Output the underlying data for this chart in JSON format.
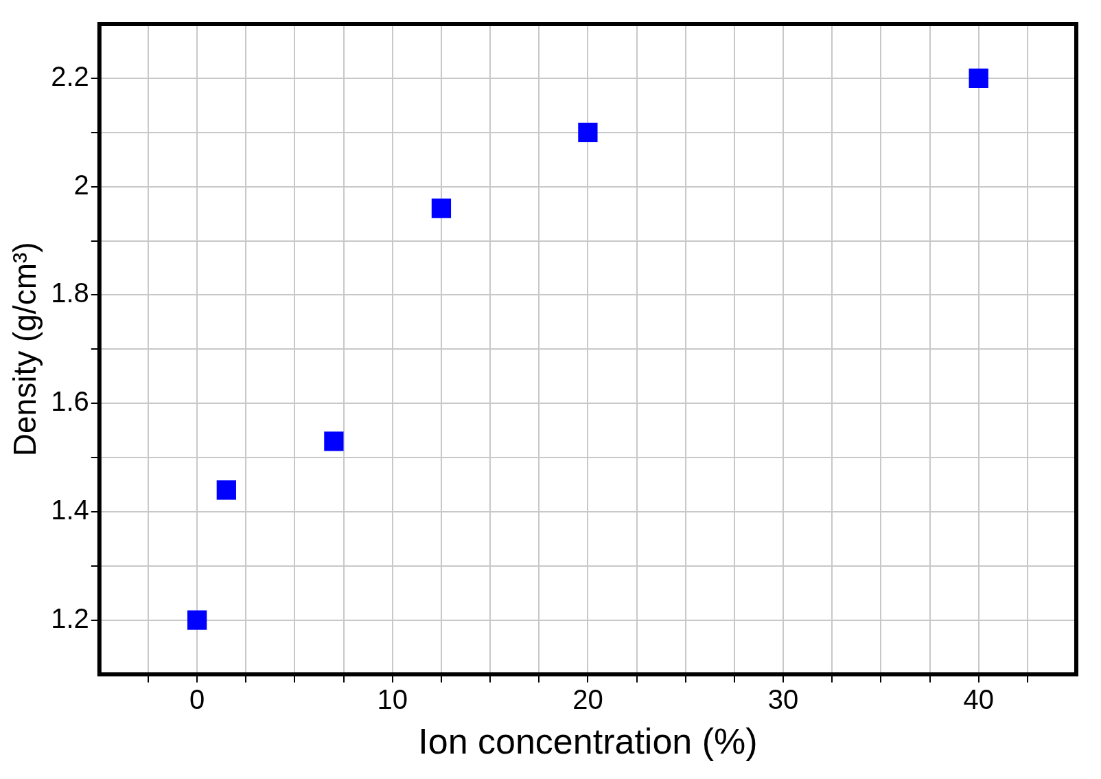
{
  "chart_data": {
    "type": "scatter",
    "xlabel": "Ion concentration (%)",
    "ylabel": "Density (g/cm³)",
    "x": [
      0,
      1.5,
      7,
      12.5,
      20,
      40
    ],
    "series": [
      {
        "color": "#0000ff",
        "values": [
          1.2,
          1.44,
          1.53,
          1.96,
          2.1,
          2.2
        ]
      }
    ],
    "marker": "square",
    "grid": true,
    "legend": false,
    "xlim": [
      -5,
      45
    ],
    "xticks": [
      {
        "value": -2.5,
        "label": null
      },
      0,
      {
        "value": 2.5,
        "label": null
      },
      {
        "value": 5,
        "label": null
      },
      {
        "value": 7.5,
        "label": null
      },
      10,
      {
        "value": 12.5,
        "label": null
      },
      {
        "value": 15,
        "label": null
      },
      {
        "value": 17.5,
        "label": null
      },
      20,
      {
        "value": 22.5,
        "label": null
      },
      {
        "value": 25,
        "label": null
      },
      {
        "value": 27.5,
        "label": null
      },
      30,
      {
        "value": 32.5,
        "label": null
      },
      {
        "value": 35,
        "label": null
      },
      {
        "value": 37.5,
        "label": null
      },
      40,
      {
        "value": 42.5,
        "label": null
      }
    ],
    "ylim": [
      1.1,
      2.3
    ],
    "yticks": [
      1.2,
      {
        "value": 1.3,
        "label": null
      },
      1.4,
      {
        "value": 1.5,
        "label": null
      },
      1.6,
      {
        "value": 1.7,
        "label": null
      },
      1.8,
      {
        "value": 1.9,
        "label": null
      },
      2.0,
      {
        "value": 2.1,
        "label": null
      },
      2.2
    ]
  }
}
